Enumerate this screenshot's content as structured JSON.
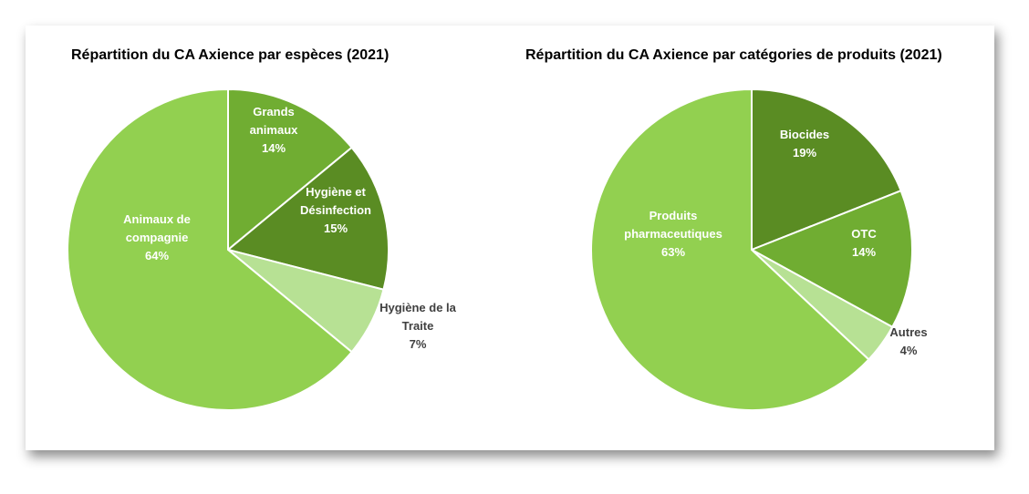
{
  "chart_data": [
    {
      "type": "pie",
      "title": "Répartition du CA Axience par espèces (2021)",
      "slices": [
        {
          "label_lines": [
            "Grands",
            "animaux",
            "14%"
          ],
          "value": 14,
          "color": "#70AD32",
          "label_color": "#ffffff"
        },
        {
          "label_lines": [
            "Hygiène et",
            "Désinfection",
            "15%"
          ],
          "value": 15,
          "color": "#5A8C23",
          "label_color": "#ffffff"
        },
        {
          "label_lines": [
            "Hygiène de la",
            "Traite",
            "7%"
          ],
          "value": 7,
          "color": "#B7E194",
          "label_color": "#404040"
        },
        {
          "label_lines": [
            "Animaux de",
            "compagnie",
            "64%"
          ],
          "value": 64,
          "color": "#92D050",
          "label_color": "#ffffff"
        }
      ]
    },
    {
      "type": "pie",
      "title": "Répartition du CA Axience par catégories de produits (2021)",
      "slices": [
        {
          "label_lines": [
            "Biocides",
            "19%"
          ],
          "value": 19,
          "color": "#5A8C23",
          "label_color": "#ffffff"
        },
        {
          "label_lines": [
            "OTC",
            "14%"
          ],
          "value": 14,
          "color": "#70AD32",
          "label_color": "#ffffff"
        },
        {
          "label_lines": [
            "Autres",
            "4%"
          ],
          "value": 4,
          "color": "#B7E194",
          "label_color": "#404040"
        },
        {
          "label_lines": [
            "Produits",
            "pharmaceutiques",
            "63%"
          ],
          "value": 63,
          "color": "#92D050",
          "label_color": "#ffffff"
        }
      ]
    }
  ]
}
